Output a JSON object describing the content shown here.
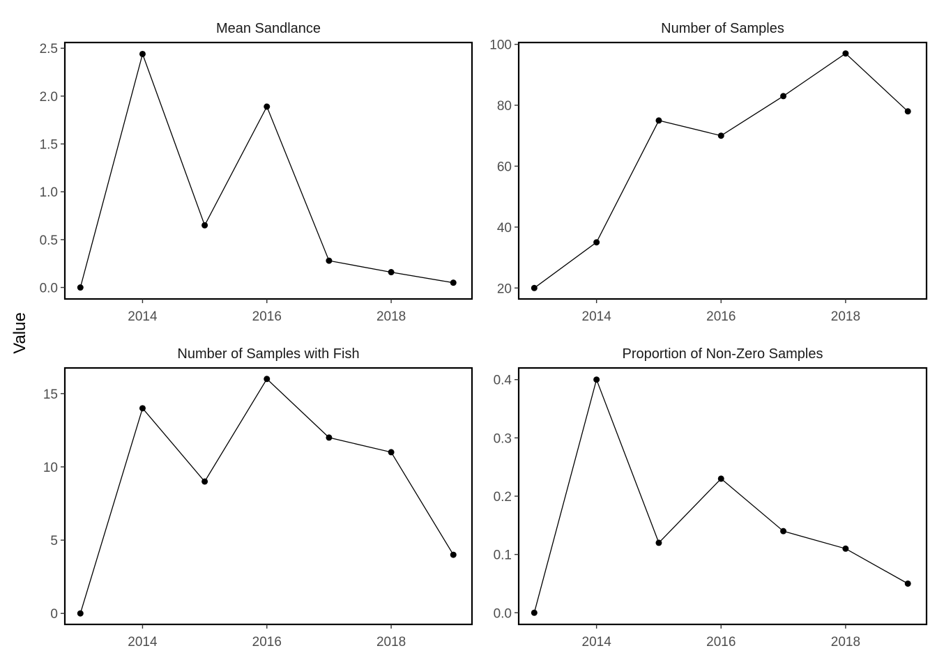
{
  "figure": {
    "ylabel": "Value"
  },
  "chart_data": [
    {
      "type": "line",
      "title": "Mean Sandlance",
      "xlabel": "",
      "ylabel": "",
      "x": [
        2013,
        2014,
        2015,
        2016,
        2017,
        2018,
        2019
      ],
      "y": [
        0.0,
        2.44,
        0.65,
        1.89,
        0.28,
        0.16,
        0.05
      ],
      "xticks": [
        2014,
        2016,
        2018
      ],
      "yticks": [
        0.0,
        0.5,
        1.0,
        1.5,
        2.0,
        2.5
      ],
      "ytick_labels": [
        "0.0",
        "0.5",
        "1.0",
        "1.5",
        "2.0",
        "2.5"
      ],
      "xlim": [
        2012.75,
        2019.3
      ],
      "ylim": [
        -0.12,
        2.56
      ]
    },
    {
      "type": "line",
      "title": "Number of Samples",
      "xlabel": "",
      "ylabel": "",
      "x": [
        2013,
        2014,
        2015,
        2016,
        2017,
        2018,
        2019
      ],
      "y": [
        20,
        35,
        75,
        70,
        83,
        97,
        78
      ],
      "xticks": [
        2014,
        2016,
        2018
      ],
      "yticks": [
        20,
        40,
        60,
        80,
        100
      ],
      "ytick_labels": [
        "20",
        "40",
        "60",
        "80",
        "100"
      ],
      "xlim": [
        2012.75,
        2019.3
      ],
      "ylim": [
        16.4,
        100.6
      ]
    },
    {
      "type": "line",
      "title": "Number of Samples with Fish",
      "xlabel": "",
      "ylabel": "",
      "x": [
        2013,
        2014,
        2015,
        2016,
        2017,
        2018,
        2019
      ],
      "y": [
        0,
        14,
        9,
        16,
        12,
        11,
        4
      ],
      "xticks": [
        2014,
        2016,
        2018
      ],
      "yticks": [
        0,
        5,
        10,
        15
      ],
      "ytick_labels": [
        "0",
        "5",
        "10",
        "15"
      ],
      "xlim": [
        2012.75,
        2019.3
      ],
      "ylim": [
        -0.75,
        16.75
      ]
    },
    {
      "type": "line",
      "title": "Proportion of Non-Zero Samples",
      "xlabel": "",
      "ylabel": "",
      "x": [
        2013,
        2014,
        2015,
        2016,
        2017,
        2018,
        2019
      ],
      "y": [
        0.0,
        0.4,
        0.12,
        0.23,
        0.14,
        0.11,
        0.05
      ],
      "xticks": [
        2014,
        2016,
        2018
      ],
      "yticks": [
        0.0,
        0.1,
        0.2,
        0.3,
        0.4
      ],
      "ytick_labels": [
        "0.0",
        "0.1",
        "0.2",
        "0.3",
        "0.4"
      ],
      "xlim": [
        2012.75,
        2019.3
      ],
      "ylim": [
        -0.02,
        0.42
      ]
    }
  ]
}
